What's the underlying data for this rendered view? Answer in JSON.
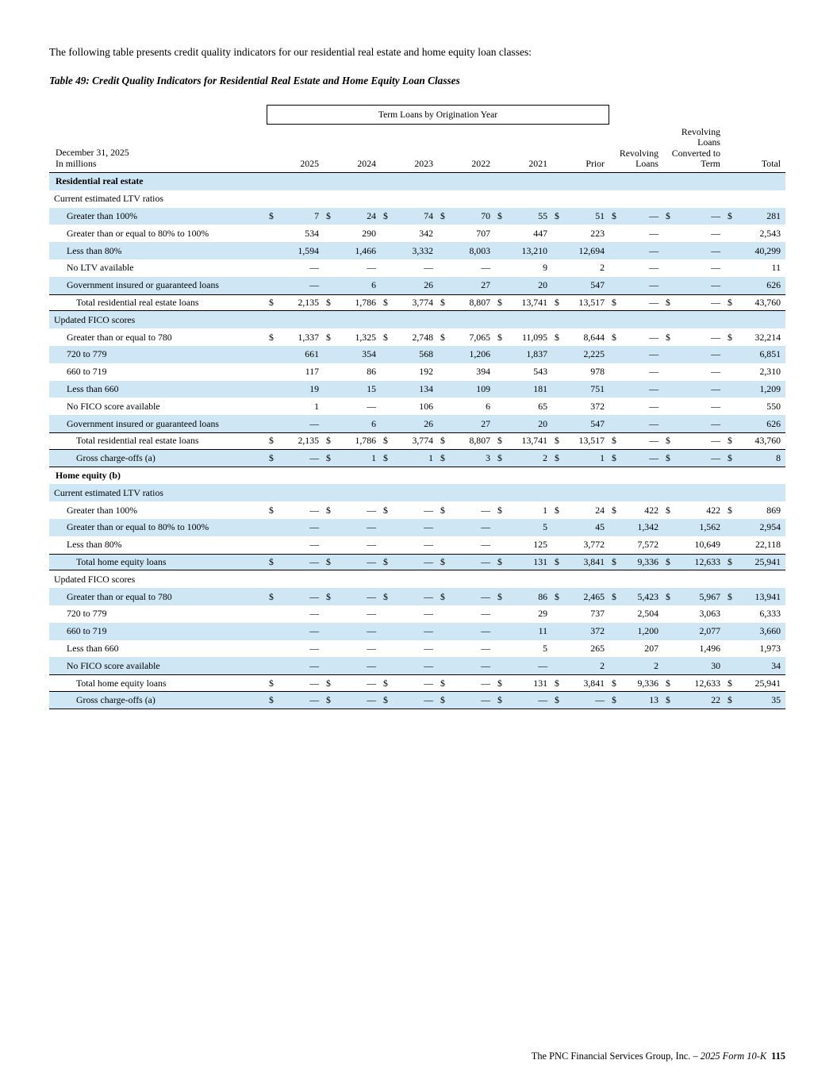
{
  "page": {
    "intro": "The following table presents credit quality indicators for our residential real estate and home equity loan classes:",
    "table_title": "Table 49: Credit Quality Indicators for Residential Real Estate and Home Equity Loan Classes",
    "footer": {
      "company": "The PNC Financial Services Group, Inc. – ",
      "form": "2025 Form 10-K",
      "page_number": "115"
    }
  },
  "table": {
    "spanner": "Term Loans by Origination Year",
    "date_label": "December 31, 2025",
    "units_label": "In millions",
    "columns": [
      "2025",
      "2024",
      "2023",
      "2022",
      "2021",
      "Prior"
    ],
    "right_columns": [
      [
        "Revolving",
        "Loans"
      ],
      [
        "Revolving",
        "Loans",
        "Converted to",
        "Term"
      ],
      [
        "Total"
      ]
    ],
    "rows": [
      {
        "type": "section",
        "label": "Residential real estate"
      },
      {
        "type": "subsection",
        "label": "Current estimated LTV ratios"
      },
      {
        "type": "data",
        "label": "Greater than 100%",
        "dollar": true,
        "values": [
          "7",
          "24",
          "74",
          "70",
          "55",
          "51",
          "—",
          "—",
          "281"
        ]
      },
      {
        "type": "data",
        "label": "Greater than or equal to 80% to 100%",
        "dollar": false,
        "values": [
          "534",
          "290",
          "342",
          "707",
          "447",
          "223",
          "—",
          "—",
          "2,543"
        ]
      },
      {
        "type": "data",
        "label": "Less than 80%",
        "dollar": false,
        "values": [
          "1,594",
          "1,466",
          "3,332",
          "8,003",
          "13,210",
          "12,694",
          "—",
          "—",
          "40,299"
        ]
      },
      {
        "type": "data",
        "label": "No LTV available",
        "dollar": false,
        "values": [
          "—",
          "—",
          "—",
          "—",
          "9",
          "2",
          "—",
          "—",
          "11"
        ]
      },
      {
        "type": "data",
        "label": "Government insured or guaranteed loans",
        "dollar": false,
        "values": [
          "—",
          "6",
          "26",
          "27",
          "20",
          "547",
          "—",
          "—",
          "626"
        ]
      },
      {
        "type": "total",
        "label": "Total residential real estate loans",
        "dollar": true,
        "values": [
          "2,135",
          "1,786",
          "3,774",
          "8,807",
          "13,741",
          "13,517",
          "—",
          "—",
          "43,760"
        ]
      },
      {
        "type": "subsection",
        "label": "Updated FICO scores"
      },
      {
        "type": "data",
        "label": "Greater than or equal to 780",
        "dollar": true,
        "values": [
          "1,337",
          "1,325",
          "2,748",
          "7,065",
          "11,095",
          "8,644",
          "—",
          "—",
          "32,214"
        ]
      },
      {
        "type": "data",
        "label": "720 to 779",
        "dollar": false,
        "values": [
          "661",
          "354",
          "568",
          "1,206",
          "1,837",
          "2,225",
          "—",
          "—",
          "6,851"
        ]
      },
      {
        "type": "data",
        "label": "660 to 719",
        "dollar": false,
        "values": [
          "117",
          "86",
          "192",
          "394",
          "543",
          "978",
          "—",
          "—",
          "2,310"
        ]
      },
      {
        "type": "data",
        "label": "Less than 660",
        "dollar": false,
        "values": [
          "19",
          "15",
          "134",
          "109",
          "181",
          "751",
          "—",
          "—",
          "1,209"
        ]
      },
      {
        "type": "data",
        "label": "No FICO score available",
        "dollar": false,
        "values": [
          "1",
          "—",
          "106",
          "6",
          "65",
          "372",
          "—",
          "—",
          "550"
        ]
      },
      {
        "type": "data",
        "label": "Government insured or guaranteed loans",
        "dollar": false,
        "values": [
          "—",
          "6",
          "26",
          "27",
          "20",
          "547",
          "—",
          "—",
          "626"
        ]
      },
      {
        "type": "total",
        "label": "Total residential real estate loans",
        "dollar": true,
        "values": [
          "2,135",
          "1,786",
          "3,774",
          "8,807",
          "13,741",
          "13,517",
          "—",
          "—",
          "43,760"
        ]
      },
      {
        "type": "gross",
        "label": "Gross charge-offs (a)",
        "dollar": true,
        "values": [
          "—",
          "1",
          "1",
          "3",
          "2",
          "1",
          "—",
          "—",
          "8"
        ]
      },
      {
        "type": "section",
        "label": "Home equity (b)"
      },
      {
        "type": "subsection",
        "label": "Current estimated LTV ratios"
      },
      {
        "type": "data",
        "label": "Greater than 100%",
        "dollar": true,
        "values": [
          "—",
          "—",
          "—",
          "—",
          "1",
          "24",
          "422",
          "422",
          "869"
        ]
      },
      {
        "type": "data",
        "label": "Greater than or equal to 80% to 100%",
        "dollar": false,
        "values": [
          "—",
          "—",
          "—",
          "—",
          "5",
          "45",
          "1,342",
          "1,562",
          "2,954"
        ]
      },
      {
        "type": "data",
        "label": "Less than 80%",
        "dollar": false,
        "values": [
          "—",
          "—",
          "—",
          "—",
          "125",
          "3,772",
          "7,572",
          "10,649",
          "22,118"
        ]
      },
      {
        "type": "total",
        "label": "Total home equity loans",
        "dollar": true,
        "values": [
          "—",
          "—",
          "—",
          "—",
          "131",
          "3,841",
          "9,336",
          "12,633",
          "25,941"
        ]
      },
      {
        "type": "subsection",
        "label": "Updated FICO scores"
      },
      {
        "type": "data",
        "label": "Greater than or equal to 780",
        "dollar": true,
        "values": [
          "—",
          "—",
          "—",
          "—",
          "86",
          "2,465",
          "5,423",
          "5,967",
          "13,941"
        ]
      },
      {
        "type": "data",
        "label": "720 to 779",
        "dollar": false,
        "values": [
          "—",
          "—",
          "—",
          "—",
          "29",
          "737",
          "2,504",
          "3,063",
          "6,333"
        ]
      },
      {
        "type": "data",
        "label": "660 to 719",
        "dollar": false,
        "values": [
          "—",
          "—",
          "—",
          "—",
          "11",
          "372",
          "1,200",
          "2,077",
          "3,660"
        ]
      },
      {
        "type": "data",
        "label": "Less than 660",
        "dollar": false,
        "values": [
          "—",
          "—",
          "—",
          "—",
          "5",
          "265",
          "207",
          "1,496",
          "1,973"
        ]
      },
      {
        "type": "data",
        "label": "No FICO score available",
        "dollar": false,
        "values": [
          "—",
          "—",
          "—",
          "—",
          "—",
          "2",
          "2",
          "30",
          "34"
        ]
      },
      {
        "type": "total",
        "label": "Total home equity loans",
        "dollar": true,
        "values": [
          "—",
          "—",
          "—",
          "—",
          "131",
          "3,841",
          "9,336",
          "12,633",
          "25,941"
        ]
      },
      {
        "type": "gross",
        "label": "Gross charge-offs (a)",
        "dollar": true,
        "values": [
          "—",
          "—",
          "—",
          "—",
          "—",
          "—",
          "13",
          "22",
          "35"
        ]
      }
    ]
  }
}
